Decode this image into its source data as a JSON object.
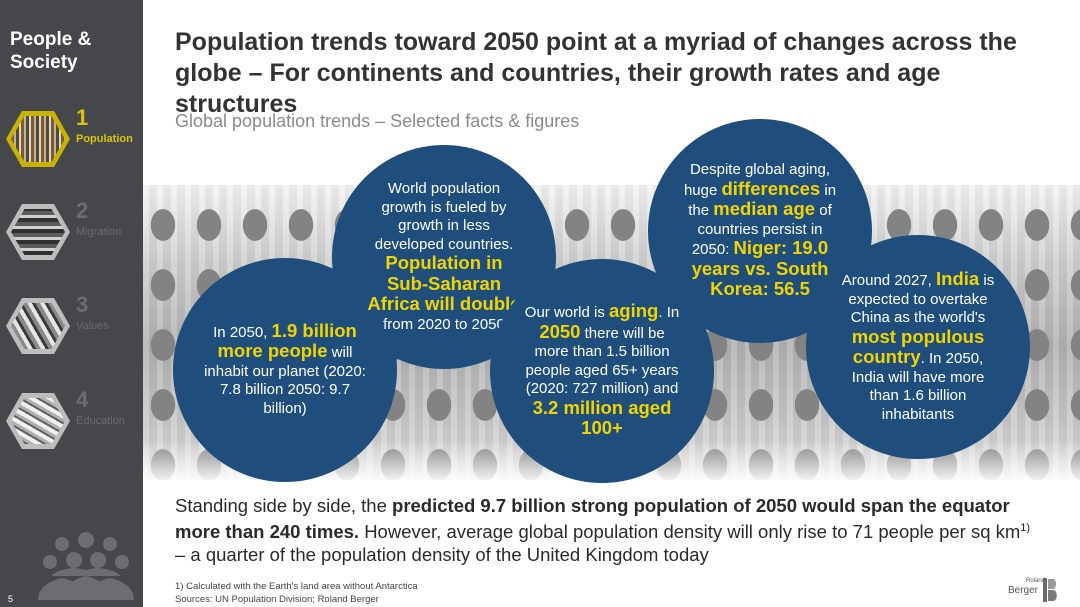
{
  "sidebar": {
    "title": "People & Society",
    "items": [
      {
        "num": "1",
        "label": "Population"
      },
      {
        "num": "2",
        "label": "Migration"
      },
      {
        "num": "3",
        "label": "Values"
      },
      {
        "num": "4",
        "label": "Education"
      }
    ],
    "page_number": "5"
  },
  "header": {
    "headline": "Population trends toward 2050 point at a myriad of changes across the globe – For continents and countries, their growth rates and age structures",
    "subheadline": "Global population trends – Selected facts & figures"
  },
  "bubbles": {
    "b1": {
      "t1": "In 2050,",
      "h1": "1.9 billion more people",
      "t2": "will inhabit our planet (2020: 7.8 billion 2050: 9.7 billion)"
    },
    "b2": {
      "t1": "World population growth is fueled by growth in less developed countries.",
      "h1": "Population in Sub-Saharan Africa will double",
      "t2": "from 2020 to 2050"
    },
    "b3": {
      "t1": "Our world is",
      "h1": "aging",
      "t2": "In",
      "h2": "2050",
      "t3": "there will be more than 1.5 billion people aged 65+ years (2020: 727 million) and",
      "h3": "3.2 million aged 100+"
    },
    "b4": {
      "t1": "Despite global aging, huge",
      "h1": "differences",
      "t2": "in the",
      "h2": "median age",
      "t3": "of countries persist in 2050:",
      "h3": "Niger: 19.0 years vs. South Korea: 56.5"
    },
    "b5": {
      "t1": "Around 2027,",
      "h1": "India",
      "t2": "is expected to overtake China as the world's",
      "h2": "most populous country",
      "t3": "In 2050, India will have more than 1.6 billion inhabitants"
    }
  },
  "bottom": {
    "p1": "Standing side by side, the",
    "bold": "predicted 9.7 billion strong population of 2050 would span the equator more than 240 times.",
    "p2": "However, average global population density will only rise to 71 people per sq km",
    "sup": "1)",
    "p3": "– a quarter of the population density of the United Kingdom today"
  },
  "footnotes": {
    "note1": "1) Calculated with the Earth's land area without Antarctica",
    "sources": "Sources: UN Population Division; Roland Berger"
  },
  "logo": {
    "small": "Roland",
    "main": "Berger"
  },
  "colors": {
    "accent": "#d9c400",
    "bubble": "#1f4e7c",
    "sidebar": "#45474b",
    "highlight": "#f0d400"
  }
}
